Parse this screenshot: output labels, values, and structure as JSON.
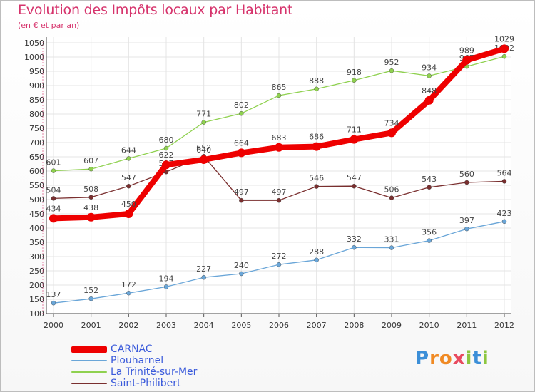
{
  "header": {
    "title": "Evolution des Impôts locaux par Habitant",
    "subtitle": "(en € et par an)"
  },
  "logo": {
    "letters": [
      "P",
      "r",
      "o",
      "x",
      "i",
      "t",
      "i"
    ],
    "colors": [
      "#3c8fd8",
      "#f08a24",
      "#f08a24",
      "#e84a5f",
      "#8cc63f",
      "#3c8fd8",
      "#8cc63f"
    ]
  },
  "chart_data": {
    "type": "line",
    "title": "Evolution des Impôts locaux par Habitant",
    "subtitle": "(en € et par an)",
    "xlabel": "",
    "ylabel": "",
    "ylim": [
      100,
      1050
    ],
    "yticks": [
      100,
      150,
      200,
      250,
      300,
      350,
      400,
      450,
      500,
      550,
      600,
      650,
      700,
      750,
      800,
      850,
      900,
      950,
      1000,
      1050
    ],
    "grid": true,
    "legend_position": "bottom-left",
    "categories": [
      "2000",
      "2001",
      "2002",
      "2003",
      "2004",
      "2005",
      "2006",
      "2007",
      "2008",
      "2009",
      "2010",
      "2011",
      "2012"
    ],
    "series": [
      {
        "name": "Saint-Philibert",
        "color": "#7a2f2f",
        "values": [
          504,
          508,
          547,
          597,
          652,
          497,
          497,
          546,
          547,
          506,
          543,
          560,
          564
        ],
        "labels": [
          "504",
          "508",
          "547",
          "597",
          "652",
          "497",
          "497",
          "546",
          "547",
          "506",
          "543",
          "560",
          "564"
        ]
      },
      {
        "name": "La Trinité-sur-Mer",
        "color": "#8fd14f",
        "values": [
          601,
          607,
          644,
          680,
          771,
          802,
          865,
          888,
          918,
          952,
          934,
          967,
          1002
        ],
        "labels": [
          "601",
          "607",
          "644",
          "680",
          "771",
          "802",
          "865",
          "888",
          "918",
          "952",
          "934",
          "967",
          "1002"
        ]
      },
      {
        "name": "Plouharnel",
        "color": "#6aa6d8",
        "values": [
          137,
          152,
          172,
          194,
          227,
          240,
          272,
          288,
          332,
          331,
          356,
          397,
          423
        ],
        "labels": [
          "137",
          "152",
          "172",
          "194",
          "227",
          "240",
          "272",
          "288",
          "332",
          "331",
          "356",
          "397",
          "423"
        ]
      },
      {
        "name": "CARNAC",
        "color": "#ee0000",
        "values": [
          434,
          438,
          450,
          622,
          640,
          664,
          683,
          686,
          711,
          734,
          848,
          989,
          1029
        ],
        "labels": [
          "434",
          "438",
          "450",
          "622",
          "640",
          "664",
          "683",
          "686",
          "711",
          "734",
          "848",
          "989",
          "1029"
        ]
      }
    ],
    "legend": [
      "CARNAC",
      "Plouharnel",
      "La Trinité-sur-Mer",
      "Saint-Philibert"
    ]
  }
}
